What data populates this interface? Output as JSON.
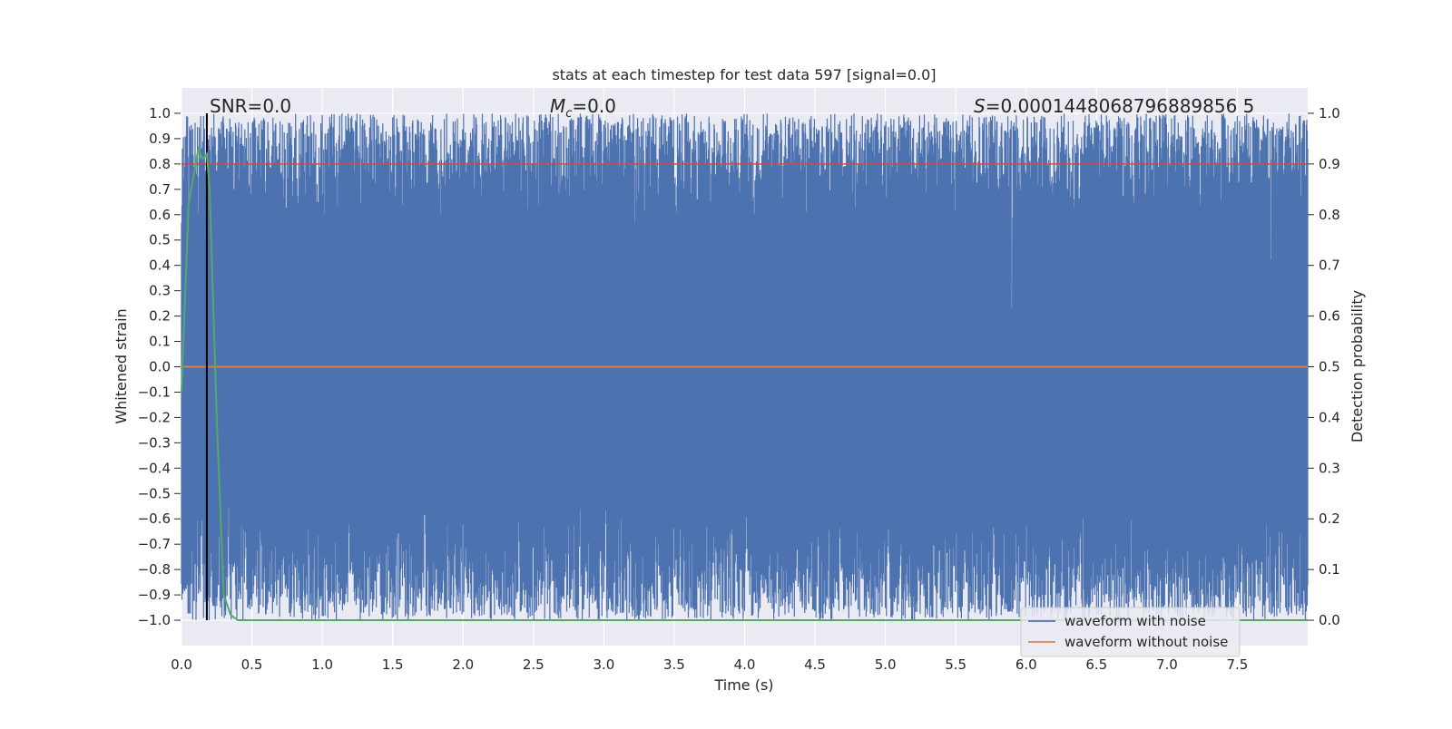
{
  "chart_data": {
    "type": "line",
    "title": "stats at each timestep for test data 597 [signal=0.0]",
    "xlabel": "Time (s)",
    "ylabel_left": "Whitened strain",
    "ylabel_right": "Detection probability",
    "xlim": [
      0.0,
      8.0
    ],
    "ylim_left": [
      -1.1,
      1.1
    ],
    "ylim_right": [
      -0.05,
      1.05
    ],
    "x_ticks": [
      "0.0",
      "0.5",
      "1.0",
      "1.5",
      "2.0",
      "2.5",
      "3.0",
      "3.5",
      "4.0",
      "4.5",
      "5.0",
      "5.5",
      "6.0",
      "6.5",
      "7.0",
      "7.5"
    ],
    "y_ticks_left": [
      "1.0",
      "0.9",
      "0.8",
      "0.7",
      "0.6",
      "0.5",
      "0.4",
      "0.3",
      "0.2",
      "0.1",
      "0.0",
      "−0.1",
      "−0.2",
      "−0.3",
      "−0.4",
      "−0.5",
      "−0.6",
      "−0.7",
      "−0.8",
      "−0.9",
      "−1.0"
    ],
    "y_ticks_right": [
      "1.0",
      "0.9",
      "0.8",
      "0.7",
      "0.6",
      "0.5",
      "0.4",
      "0.3",
      "0.2",
      "0.1",
      "0.0"
    ],
    "grid": true,
    "annotations": {
      "snr_prefix": "SNR=",
      "snr_value": "0.0",
      "mc_symbol": "M",
      "mc_subscript": "c",
      "mc_value": "=0.0",
      "s_symbol": "S",
      "s_value": "=0.0001448068796889856 5"
    },
    "vertical_marker_x": 0.18,
    "threshold_probability": 0.9,
    "series": [
      {
        "name": "waveform with noise",
        "axis": "left",
        "color": "#4c72b0",
        "description_range": [
          -1.0,
          1.0
        ]
      },
      {
        "name": "waveform without noise",
        "axis": "left",
        "color": "#dd8452",
        "y_constant": 0.0
      },
      {
        "axis": "right",
        "color": "#55a868",
        "x": [
          0.0,
          0.05,
          0.1,
          0.12,
          0.15,
          0.18,
          0.2,
          0.25,
          0.3,
          0.35,
          0.4,
          1.0,
          2.0,
          3.0,
          4.0,
          5.0,
          6.0,
          7.0,
          8.0
        ],
        "y": [
          0.45,
          0.82,
          0.9,
          0.93,
          0.91,
          0.92,
          0.85,
          0.4,
          0.05,
          0.01,
          0.0,
          0.0,
          0.0,
          0.0,
          0.0,
          0.0,
          0.0,
          0.0,
          0.0
        ]
      }
    ],
    "legend": {
      "placement": "lower-right"
    }
  }
}
